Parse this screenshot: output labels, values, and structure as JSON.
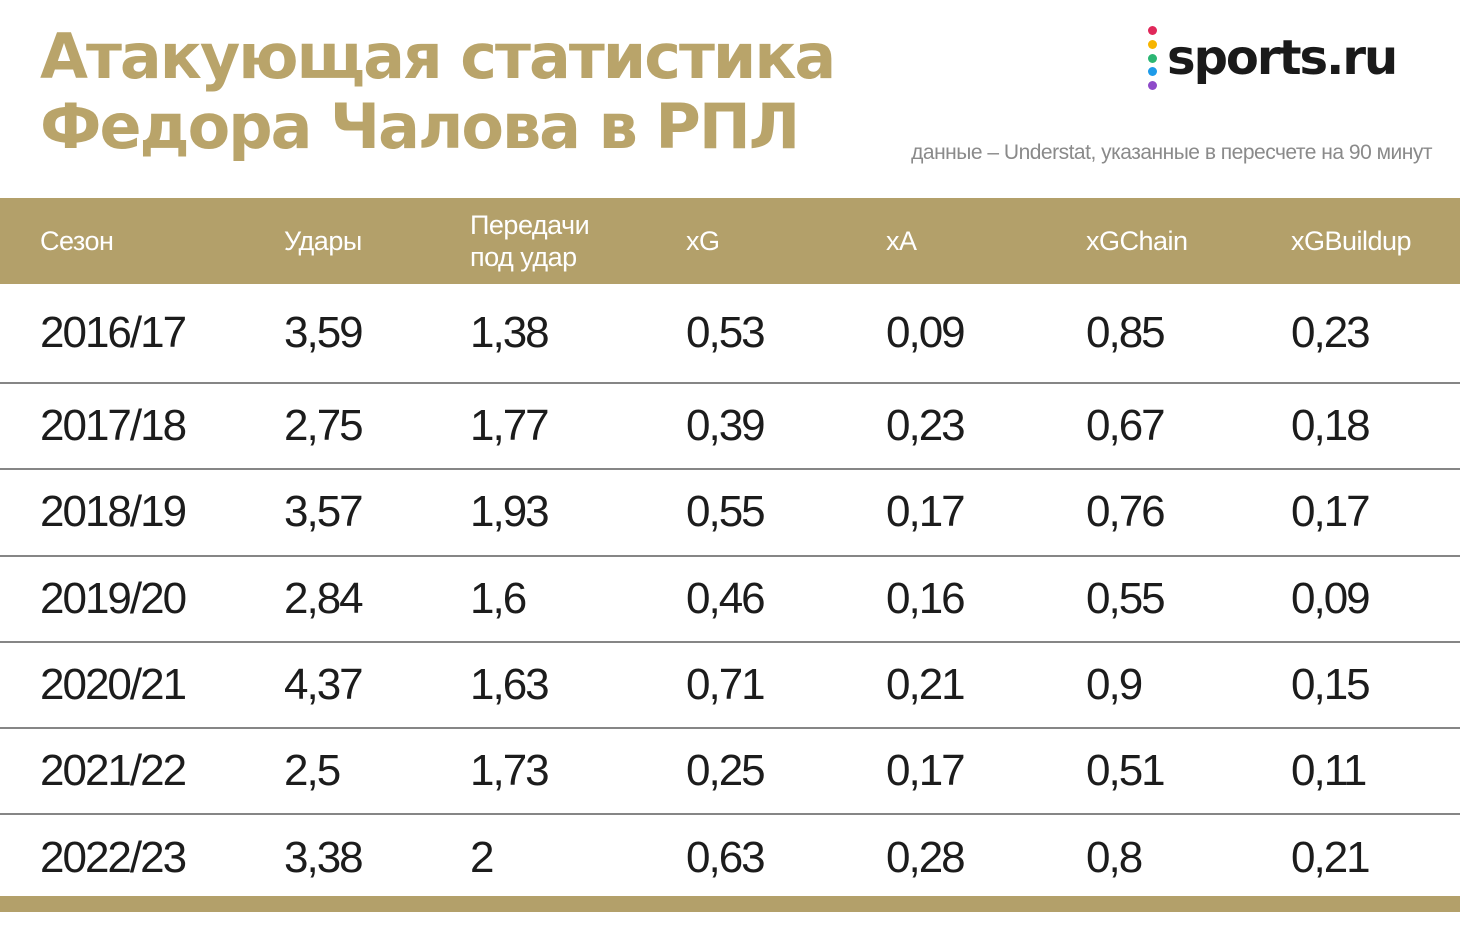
{
  "header": {
    "title_line1": "Атакующая статистика",
    "title_line2": "Федора Чалова в РПЛ",
    "logo_text": "sports.ru",
    "logo_dot_colors": [
      "#e0285a",
      "#f7b500",
      "#2bb673",
      "#1e9be9",
      "#8e4bc9"
    ],
    "source_note": "данные – Understat, указанные в пересчете на 90 минут"
  },
  "colors": {
    "accent": "#b3a06a",
    "title": "#b9a46a"
  },
  "chart_data": {
    "type": "table",
    "columns": [
      {
        "key": "season",
        "label": [
          "Сезон"
        ]
      },
      {
        "key": "shots",
        "label": [
          "Удары"
        ]
      },
      {
        "key": "key_passes",
        "label": [
          "Передачи",
          "под удар"
        ]
      },
      {
        "key": "xg",
        "label": [
          "xG"
        ]
      },
      {
        "key": "xa",
        "label": [
          "xA"
        ]
      },
      {
        "key": "xgchain",
        "label": [
          "xGChain"
        ]
      },
      {
        "key": "xgbuildup",
        "label": [
          "xGBuildup"
        ]
      }
    ],
    "rows": [
      [
        "2016/17",
        "3,59",
        "1,38",
        "0,53",
        "0,09",
        "0,85",
        "0,23"
      ],
      [
        "2017/18",
        "2,75",
        "1,77",
        "0,39",
        "0,23",
        "0,67",
        "0,18"
      ],
      [
        "2018/19",
        "3,57",
        "1,93",
        "0,55",
        "0,17",
        "0,76",
        "0,17"
      ],
      [
        "2019/20",
        "2,84",
        "1,6",
        "0,46",
        "0,16",
        "0,55",
        "0,09"
      ],
      [
        "2020/21",
        "4,37",
        "1,63",
        "0,71",
        "0,21",
        "0,9",
        "0,15"
      ],
      [
        "2021/22",
        "2,5",
        "1,73",
        "0,25",
        "0,17",
        "0,51",
        "0,11"
      ],
      [
        "2022/23",
        "3,38",
        "2",
        "0,63",
        "0,28",
        "0,8",
        "0,21"
      ]
    ]
  }
}
